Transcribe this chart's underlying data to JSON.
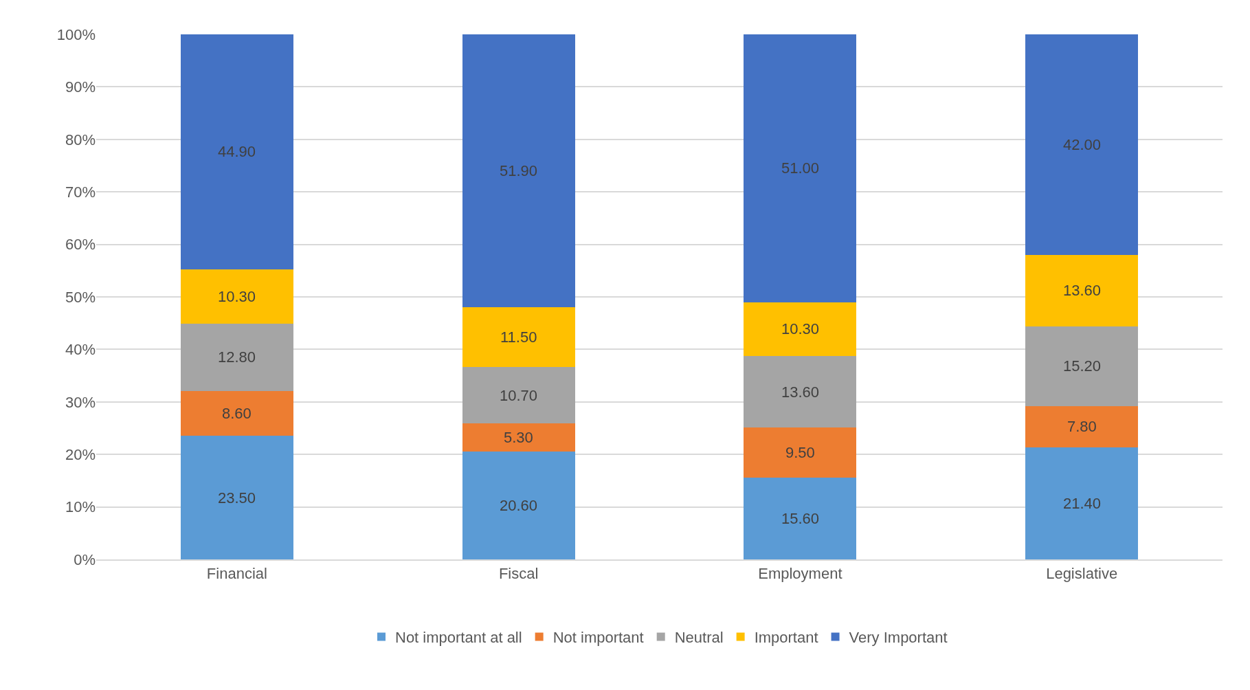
{
  "chart_data": {
    "type": "bar",
    "stacked": true,
    "categories": [
      "Financial",
      "Fiscal",
      "Employment",
      "Legislative"
    ],
    "series": [
      {
        "name": "Not important at all",
        "color": "#5b9bd5",
        "values": [
          23.5,
          20.6,
          15.6,
          21.4
        ],
        "value_labels": [
          "23.50",
          "20.60",
          "15.60",
          "21.40"
        ]
      },
      {
        "name": "Not important",
        "color": "#ed7d31",
        "values": [
          8.6,
          5.3,
          9.5,
          7.8
        ],
        "value_labels": [
          "8.60",
          "5.30",
          "9.50",
          "7.80"
        ]
      },
      {
        "name": "Neutral",
        "color": "#a5a5a5",
        "values": [
          12.8,
          10.7,
          13.6,
          15.2
        ],
        "value_labels": [
          "12.80",
          "10.70",
          "13.60",
          "15.20"
        ]
      },
      {
        "name": "Important",
        "color": "#ffc000",
        "values": [
          10.3,
          11.5,
          10.3,
          13.6
        ],
        "value_labels": [
          "10.30",
          "11.50",
          "10.30",
          "13.60"
        ]
      },
      {
        "name": "Very Important",
        "color": "#4472c4",
        "values": [
          44.9,
          51.9,
          51.0,
          42.0
        ],
        "value_labels": [
          "44.90",
          "51.90",
          "51.00",
          "42.00"
        ]
      }
    ],
    "ylim": [
      0,
      100
    ],
    "yticks": [
      {
        "value": 0,
        "label": "0%"
      },
      {
        "value": 10,
        "label": "10%"
      },
      {
        "value": 20,
        "label": "20%"
      },
      {
        "value": 30,
        "label": "30%"
      },
      {
        "value": 40,
        "label": "40%"
      },
      {
        "value": 50,
        "label": "50%"
      },
      {
        "value": 60,
        "label": "60%"
      },
      {
        "value": 70,
        "label": "70%"
      },
      {
        "value": 80,
        "label": "80%"
      },
      {
        "value": 90,
        "label": "90%"
      },
      {
        "value": 100,
        "label": "100%"
      }
    ],
    "grid": "y",
    "legend": "bottom"
  }
}
